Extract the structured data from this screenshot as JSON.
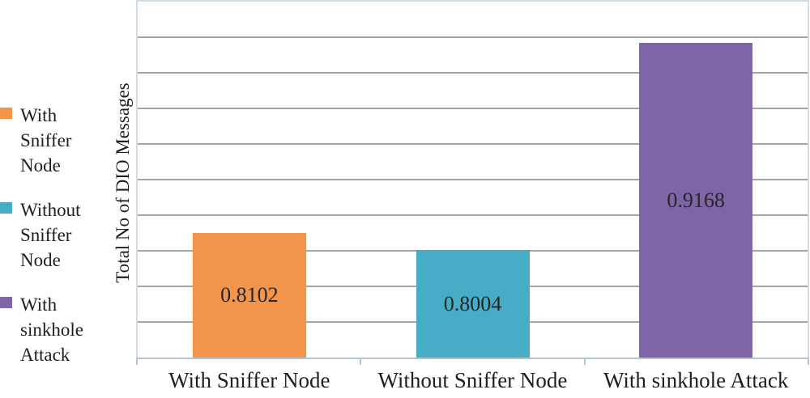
{
  "chart_data": {
    "type": "bar",
    "title": "",
    "ylabel": "Total No of DIO Messages",
    "xlabel": "",
    "categories": [
      "With Sniffer Node",
      "Without Sniffer Node",
      "With sinkhole Attack"
    ],
    "values": [
      0.8102,
      0.8004,
      0.9168
    ],
    "value_labels": [
      "0.8102",
      "0.8004",
      "0.9168"
    ],
    "bar_colors": [
      "#f2944a",
      "#47acc6",
      "#7f65a7"
    ],
    "ylim": [
      0.74,
      0.94
    ],
    "grid_step": 0.02,
    "grid": true,
    "y_tick_labels_visible": false,
    "legend_position": "left",
    "legend": [
      {
        "label": "With Sniffer Node",
        "color": "#f2944a"
      },
      {
        "label": "Without Sniffer Node",
        "color": "#47acc6"
      },
      {
        "label": "With sinkhole Attack",
        "color": "#7f65a7"
      }
    ]
  },
  "style": {
    "background": "#ffffff",
    "gridline_color": "#a4a4a4",
    "plot_border_color": "#cfdde9",
    "axis_line_color": "#b3c3d2",
    "text_color": "#1f1f1f",
    "value_label_color": "#262626"
  }
}
